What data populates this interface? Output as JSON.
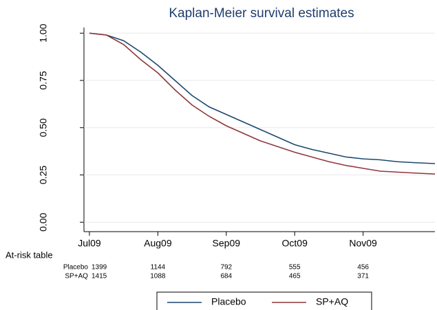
{
  "chart_data": {
    "type": "line",
    "title": "Kaplan-Meier survival estimates",
    "x": [
      0,
      0.25,
      0.5,
      0.75,
      1.0,
      1.25,
      1.5,
      1.75,
      2.0,
      2.25,
      2.5,
      2.75,
      3.0,
      3.25,
      3.5,
      3.75,
      4.0,
      4.25,
      4.5,
      4.75,
      5.05
    ],
    "series": [
      {
        "name": "Placebo",
        "color": "#1a476f",
        "values": [
          1.0,
          0.99,
          0.96,
          0.9,
          0.83,
          0.75,
          0.67,
          0.61,
          0.57,
          0.53,
          0.49,
          0.45,
          0.41,
          0.385,
          0.365,
          0.345,
          0.335,
          0.33,
          0.32,
          0.315,
          0.31
        ]
      },
      {
        "name": "SP+AQ",
        "color": "#90353b",
        "values": [
          1.0,
          0.99,
          0.94,
          0.86,
          0.79,
          0.7,
          0.62,
          0.56,
          0.51,
          0.47,
          0.43,
          0.4,
          0.37,
          0.345,
          0.32,
          0.3,
          0.285,
          0.27,
          0.265,
          0.26,
          0.255
        ]
      }
    ],
    "xlim": [
      -0.08,
      5.05
    ],
    "xticks": [
      {
        "value": 0,
        "label": "Jul09"
      },
      {
        "value": 1,
        "label": "Aug09"
      },
      {
        "value": 2,
        "label": "Sep09"
      },
      {
        "value": 3,
        "label": "Oct09"
      },
      {
        "value": 4,
        "label": "Nov09"
      }
    ],
    "ylim": [
      -0.05,
      1.03
    ],
    "yticks": [
      {
        "value": 0,
        "label": "0.00"
      },
      {
        "value": 0.25,
        "label": "0.25"
      },
      {
        "value": 0.5,
        "label": "0.50"
      },
      {
        "value": 0.75,
        "label": "0.75"
      },
      {
        "value": 1,
        "label": "1.00"
      }
    ],
    "grid": true,
    "at_risk": {
      "title": "At-risk table",
      "rows": [
        {
          "name": "Placebo",
          "values": [
            1399,
            1144,
            792,
            555,
            456
          ]
        },
        {
          "name": "SP+AQ",
          "values": [
            1415,
            1088,
            684,
            465,
            371
          ]
        }
      ]
    }
  }
}
